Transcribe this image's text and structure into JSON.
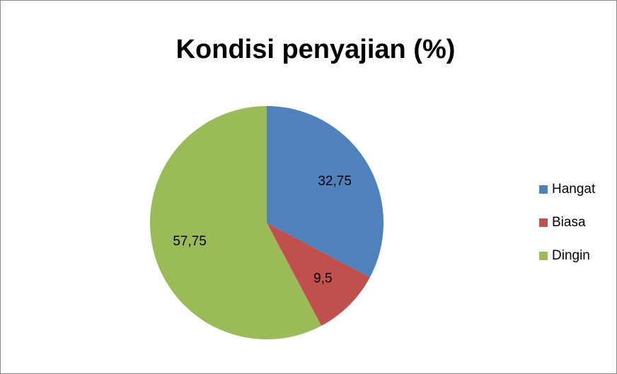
{
  "chart_data": {
    "type": "pie",
    "title": "Kondisi penyajian (%)",
    "categories": [
      "Hangat",
      "Biasa",
      "Dingin"
    ],
    "values": [
      32.75,
      9.5,
      57.75
    ],
    "value_labels": [
      "32,75",
      "9,5",
      "57,75"
    ],
    "colors": [
      "#4f81bd",
      "#c0504d",
      "#9bbb59"
    ],
    "legend": "right"
  }
}
